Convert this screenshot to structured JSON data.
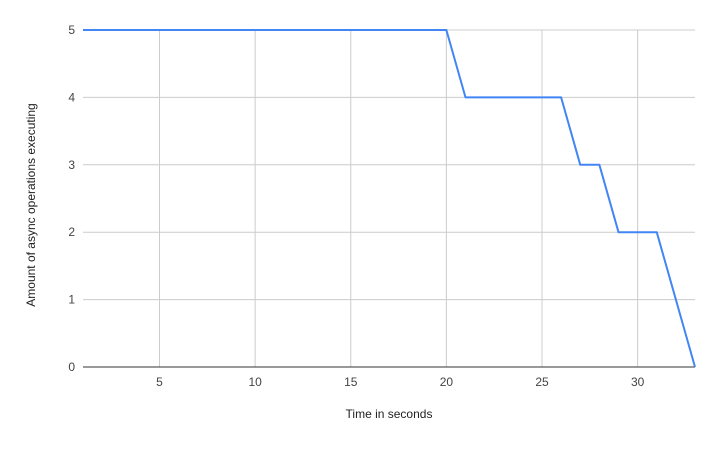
{
  "chart_data": {
    "type": "line",
    "title": "",
    "xlabel": "Time in seconds",
    "ylabel": "Amount of async operations executing",
    "xlim": [
      1,
      33
    ],
    "ylim": [
      0,
      5
    ],
    "x_ticks": [
      5,
      10,
      15,
      20,
      25,
      30
    ],
    "y_ticks": [
      0,
      1,
      2,
      3,
      4,
      5
    ],
    "grid": true,
    "legend": "none",
    "series": [
      {
        "color": "#4285f4",
        "x": [
          1,
          20,
          21,
          26,
          27,
          28,
          29,
          31,
          33
        ],
        "y": [
          5,
          5,
          4,
          4,
          3,
          3,
          2,
          2,
          0
        ]
      }
    ]
  },
  "colors": {
    "grid": "#cccccc",
    "baseline": "#333333",
    "line": "#4285f4"
  }
}
